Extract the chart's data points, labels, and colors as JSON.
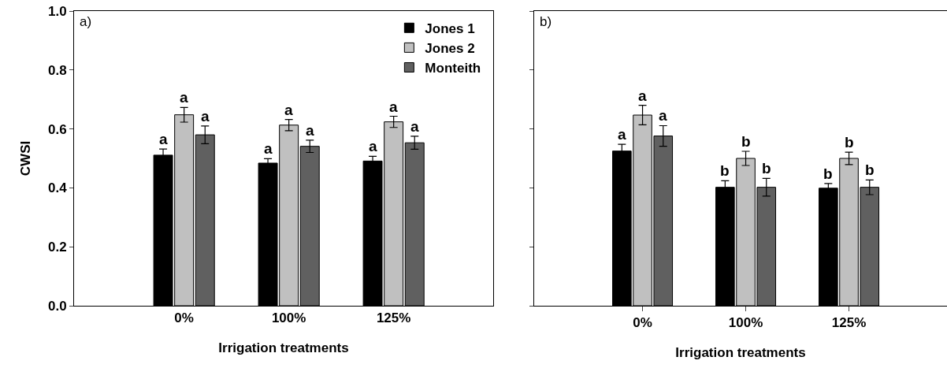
{
  "chart_data": [
    {
      "type": "bar",
      "xlabel": "Irrigation treatments",
      "ylabel": "CWSI",
      "annotations": [
        "a)"
      ],
      "categories": [
        "0%",
        "100%",
        "125%"
      ],
      "ylim": [
        0,
        1
      ],
      "yticks": [
        {
          "value": 0,
          "label": "0.0"
        },
        0.2,
        0.4,
        0.6,
        0.8,
        {
          "value": 1,
          "label": "1.0"
        }
      ],
      "legend": "top right",
      "series": [
        {
          "name": "Jones 1",
          "color": "#000000",
          "values": [
            0.511,
            0.484,
            0.491
          ],
          "errors": [
            0.021,
            0.015,
            0.016
          ],
          "value_labels": [
            "a",
            "a",
            "a"
          ]
        },
        {
          "name": "Jones 2",
          "color": "#c0c0c0",
          "values": [
            0.648,
            0.613,
            0.624
          ],
          "errors": [
            0.025,
            0.019,
            0.019
          ],
          "value_labels": [
            "a",
            "a",
            "a"
          ]
        },
        {
          "name": "Monteith",
          "color": "#606060",
          "values": [
            0.58,
            0.541,
            0.553
          ],
          "errors": [
            0.03,
            0.021,
            0.022
          ],
          "value_labels": [
            "a",
            "a",
            "a"
          ]
        }
      ]
    },
    {
      "type": "bar",
      "xlabel": "Irrigation treatments",
      "annotations": [
        "b)"
      ],
      "categories": [
        "0%",
        "100%",
        "125%"
      ],
      "ylim": [
        0,
        1
      ],
      "yticks": [
        {
          "value": 0,
          "label": null
        },
        {
          "value": 0.2,
          "label": null
        },
        {
          "value": 0.4,
          "label": null
        },
        {
          "value": 0.6,
          "label": null
        },
        {
          "value": 0.8,
          "label": null
        },
        {
          "value": 1,
          "label": null
        }
      ],
      "tick_labels": "x",
      "series": [
        {
          "color": "#000000",
          "values": [
            0.525,
            0.402,
            0.399
          ],
          "errors": [
            0.023,
            0.022,
            0.016
          ],
          "value_labels": [
            "a",
            "b",
            "b"
          ]
        },
        {
          "color": "#c0c0c0",
          "values": [
            0.647,
            0.5,
            0.5
          ],
          "errors": [
            0.033,
            0.024,
            0.021
          ],
          "value_labels": [
            "a",
            "b",
            "b"
          ]
        },
        {
          "color": "#606060",
          "values": [
            0.576,
            0.402,
            0.402
          ],
          "errors": [
            0.035,
            0.03,
            0.025
          ],
          "value_labels": [
            "a",
            "b",
            "b"
          ]
        }
      ]
    }
  ]
}
